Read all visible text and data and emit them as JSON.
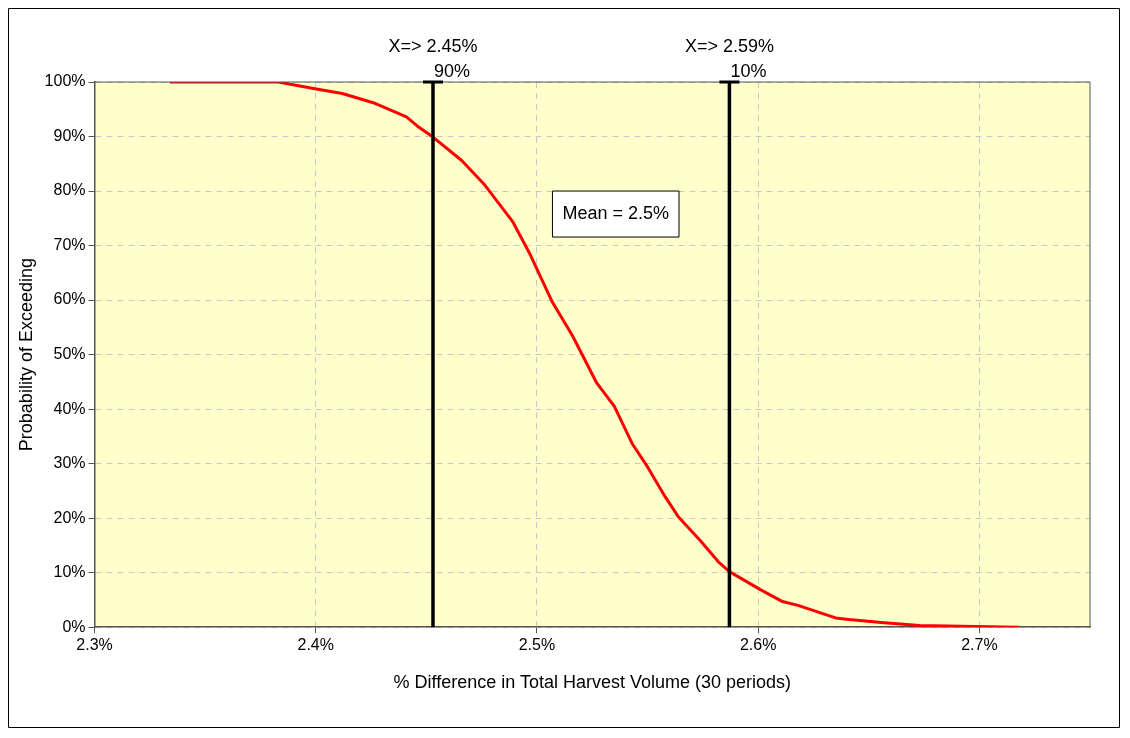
{
  "chart_data": {
    "type": "line",
    "xlabel": "% Difference in Total Harvest Volume (30 periods)",
    "ylabel": "Probability of Exceeding",
    "x": [
      2.334,
      2.383,
      2.399,
      2.412,
      2.426,
      2.441,
      2.446,
      2.453,
      2.466,
      2.476,
      2.489,
      2.497,
      2.507,
      2.516,
      2.527,
      2.535,
      2.543,
      2.55,
      2.558,
      2.564,
      2.574,
      2.582,
      2.587,
      2.601,
      2.611,
      2.618,
      2.635,
      2.641,
      2.657,
      2.673,
      2.718
    ],
    "series": [
      {
        "color": "#ff0000",
        "values": [
          100,
          100,
          98.8,
          97.9,
          96.2,
          93.6,
          91.9,
          89.9,
          85.6,
          81.3,
          74.4,
          68.3,
          59.6,
          53.5,
          44.8,
          40.5,
          33.7,
          29.4,
          23.9,
          20.2,
          15.8,
          12.0,
          10.2,
          6.9,
          4.7,
          4.0,
          1.7,
          1.4,
          0.8,
          0.3,
          0
        ]
      }
    ],
    "xlim": [
      2.3,
      2.75
    ],
    "ylim": [
      0,
      100
    ],
    "xticks": [
      {
        "value": 2.3,
        "label": "2.3%"
      },
      {
        "value": 2.4,
        "label": "2.4%"
      },
      {
        "value": 2.5,
        "label": "2.5%"
      },
      {
        "value": 2.6,
        "label": "2.6%"
      },
      {
        "value": 2.7,
        "label": "2.7%"
      }
    ],
    "yticks": [
      {
        "value": 0,
        "label": "0%"
      },
      {
        "value": 10,
        "label": "10%"
      },
      {
        "value": 20,
        "label": "20%"
      },
      {
        "value": 30,
        "label": "30%"
      },
      {
        "value": 40,
        "label": "40%"
      },
      {
        "value": 50,
        "label": "50%"
      },
      {
        "value": 60,
        "label": "60%"
      },
      {
        "value": 70,
        "label": "70%"
      },
      {
        "value": 80,
        "label": "80%"
      },
      {
        "value": 90,
        "label": "90%"
      },
      {
        "value": 100,
        "label": "100%"
      }
    ],
    "ref_lines": [
      {
        "axis": "x",
        "value": 2.453,
        "label": "X=> 2.45%",
        "color": "#000000"
      },
      {
        "axis": "x",
        "value": 2.587,
        "label": "X=> 2.59%",
        "color": "#000000"
      }
    ],
    "annotations": [
      {
        "text": "90%",
        "x": 2.453,
        "y": 100
      },
      {
        "text": "10%",
        "x": 2.587,
        "y": 100
      },
      "Mean = 2.5%"
    ],
    "grid": true,
    "marker": "none",
    "line_style": "solid"
  }
}
